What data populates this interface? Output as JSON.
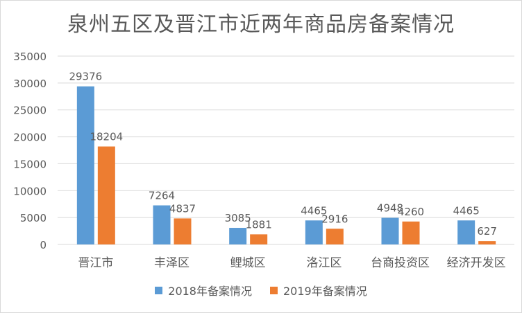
{
  "colors": {
    "series_2018": "#5b9bd5",
    "series_2019": "#ed7d31",
    "grid": "#d9d9d9",
    "text": "#595959"
  },
  "chart_data": {
    "type": "bar",
    "title": "泉州五区及晋江市近两年商品房备案情况",
    "categories": [
      "晋江市",
      "丰泽区",
      "鲤城区",
      "洛江区",
      "台商投资区",
      "经济开发区"
    ],
    "series": [
      {
        "name": "2018年备案情况",
        "values": [
          29376,
          7264,
          3085,
          4465,
          4948,
          4465
        ]
      },
      {
        "name": "2019年备案情况",
        "values": [
          18204,
          4837,
          1881,
          2916,
          4260,
          627
        ]
      }
    ],
    "ylim": [
      0,
      35000
    ],
    "yticks": [
      "0",
      "5000",
      "10000",
      "15000",
      "20000",
      "25000",
      "30000",
      "35000"
    ],
    "grid": true,
    "legend": "bottom"
  }
}
